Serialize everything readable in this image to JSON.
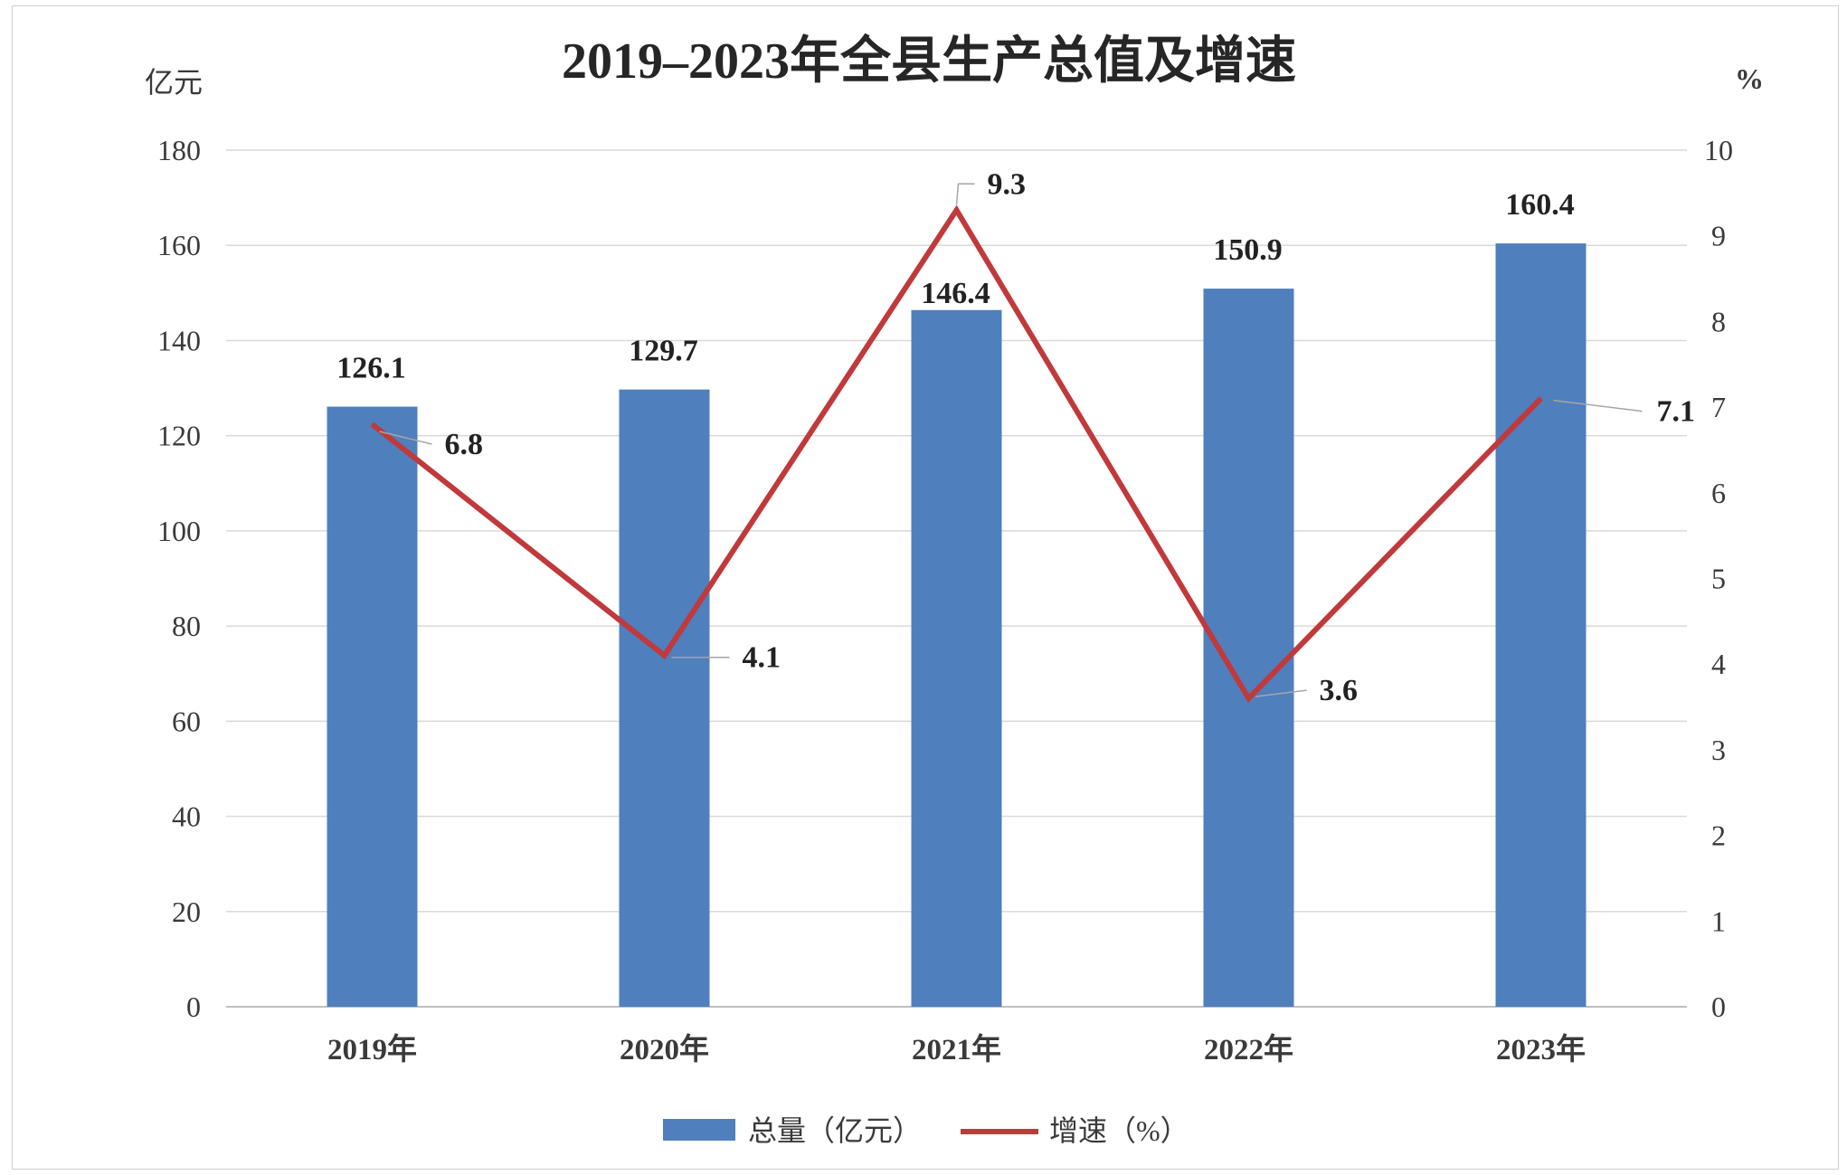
{
  "chart_data": {
    "type": "bar",
    "title": "2019–2023年全县生产总值及增速",
    "categories": [
      "2019年",
      "2020年",
      "2021年",
      "2022年",
      "2023年"
    ],
    "series": [
      {
        "name": "总量（亿元）",
        "type": "bar",
        "axis": "left",
        "color": "#4f7fbc",
        "values": [
          126.1,
          129.7,
          146.4,
          150.9,
          160.4
        ]
      },
      {
        "name": "增速（%）",
        "type": "line",
        "axis": "right",
        "color": "#c0393b",
        "values": [
          6.8,
          4.1,
          9.3,
          3.6,
          7.1
        ]
      }
    ],
    "left_axis": {
      "unit": "亿元",
      "ylim": [
        0,
        180
      ],
      "ticks": [
        "0",
        "20",
        "40",
        "60",
        "80",
        "100",
        "120",
        "140",
        "160",
        "180"
      ]
    },
    "right_axis": {
      "unit": "%",
      "ylim": [
        0,
        10
      ],
      "ticks": [
        "0",
        "1",
        "2",
        "3",
        "4",
        "5",
        "6",
        "7",
        "8",
        "9",
        "10"
      ]
    },
    "bar_labels": [
      "126.1",
      "129.7",
      "146.4",
      "150.9",
      "160.4"
    ],
    "line_labels": [
      "6.8",
      "4.1",
      "9.3",
      "3.6",
      "7.1"
    ],
    "grid": true,
    "legend": "bottom"
  }
}
